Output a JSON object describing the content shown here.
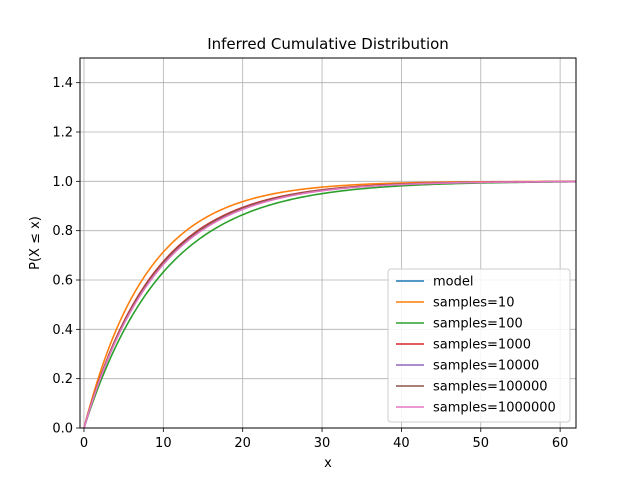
{
  "chart_data": {
    "type": "line",
    "title": "Inferred Cumulative Distribution",
    "xlabel": "x",
    "ylabel": "P(X ≤ x)",
    "xlim": [
      -0.5,
      62
    ],
    "ylim": [
      0.0,
      1.5
    ],
    "xticks": [
      0,
      10,
      20,
      30,
      40,
      50,
      60
    ],
    "yticks": [
      0.0,
      0.2,
      0.4,
      0.6,
      0.8,
      1.0,
      1.2,
      1.4
    ],
    "grid": true,
    "legend_position": "lower-right",
    "x_range": [
      0,
      62
    ],
    "series": [
      {
        "name": "model",
        "color": "#1f77b4",
        "mean": 9.0
      },
      {
        "name": "samples=10",
        "color": "#ff7f0e",
        "mean": 8.0
      },
      {
        "name": "samples=100",
        "color": "#2ca02c",
        "mean": 10.0
      },
      {
        "name": "samples=1000",
        "color": "#d62728",
        "mean": 8.9
      },
      {
        "name": "samples=10000",
        "color": "#9467bd",
        "mean": 9.1
      },
      {
        "name": "samples=100000",
        "color": "#8c564b",
        "mean": 9.0
      },
      {
        "name": "samples=1000000",
        "color": "#e377c2",
        "mean": 9.2
      }
    ]
  }
}
